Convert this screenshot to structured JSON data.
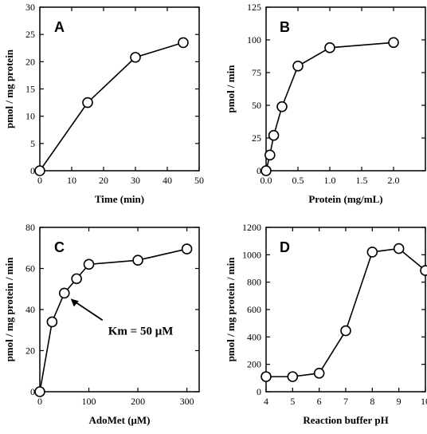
{
  "chart_data": [
    {
      "type": "line",
      "panel_label": "A",
      "xlabel": "Time (min)",
      "ylabel": "pmol / mg protein",
      "xlim": [
        0,
        50
      ],
      "ylim": [
        0,
        30
      ],
      "x_ticks": [
        0,
        10,
        20,
        30,
        40,
        50
      ],
      "y_ticks": [
        0,
        5,
        10,
        15,
        20,
        25,
        30
      ],
      "x_tick_labels": [
        "0",
        "10",
        "20",
        "30",
        "40",
        "50"
      ],
      "y_tick_labels": [
        "0",
        "5",
        "10",
        "15",
        "20",
        "25",
        "30"
      ],
      "grid": false,
      "series": [
        {
          "x": [
            0,
            15,
            30,
            45
          ],
          "y": [
            0,
            12.5,
            20.8,
            23.5
          ]
        }
      ]
    },
    {
      "type": "line",
      "panel_label": "B",
      "xlabel": "Protein (mg/mL)",
      "ylabel": "pmol / min",
      "xlim": [
        0,
        2.5
      ],
      "ylim": [
        0,
        125
      ],
      "x_ticks": [
        0,
        0.5,
        1.0,
        1.5,
        2.0
      ],
      "y_ticks": [
        0,
        25,
        50,
        75,
        100,
        125
      ],
      "x_tick_labels": [
        "0.0",
        "0.5",
        "1.0",
        "1.5",
        "2.0"
      ],
      "y_tick_labels": [
        "0",
        "25",
        "50",
        "75",
        "100",
        "125"
      ],
      "grid": false,
      "series": [
        {
          "x": [
            0,
            0.06,
            0.12,
            0.25,
            0.5,
            1.0,
            2.0
          ],
          "y": [
            0,
            12,
            27,
            49,
            80,
            94,
            98
          ]
        }
      ]
    },
    {
      "type": "line",
      "panel_label": "C",
      "xlabel": "AdoMet (μM)",
      "ylabel": "pmol / mg protein / min",
      "xlim": [
        0,
        325
      ],
      "ylim": [
        0,
        80
      ],
      "x_ticks": [
        0,
        100,
        200,
        300
      ],
      "y_ticks": [
        0,
        20,
        40,
        60,
        80
      ],
      "x_tick_labels": [
        "0",
        "100",
        "200",
        "300"
      ],
      "y_tick_labels": [
        "0",
        "20",
        "40",
        "60",
        "80"
      ],
      "grid": false,
      "annotation": {
        "text": "Km = 50 μM",
        "x": 50,
        "y": 48
      },
      "series": [
        {
          "x": [
            0,
            25,
            50,
            75,
            100,
            200,
            300
          ],
          "y": [
            0,
            34,
            48,
            55,
            62,
            64,
            69.5
          ]
        }
      ]
    },
    {
      "type": "line",
      "panel_label": "D",
      "xlabel": "Reaction buffer pH",
      "ylabel": "pmol / mg protein / min",
      "xlim": [
        4,
        10
      ],
      "ylim": [
        0,
        1200
      ],
      "x_ticks": [
        4,
        5,
        6,
        7,
        8,
        9,
        10
      ],
      "y_ticks": [
        0,
        200,
        400,
        600,
        800,
        1000,
        1200
      ],
      "x_tick_labels": [
        "4",
        "5",
        "6",
        "7",
        "8",
        "9",
        "10"
      ],
      "y_tick_labels": [
        "0",
        "200",
        "400",
        "600",
        "800",
        "1000",
        "1200"
      ],
      "grid": false,
      "series": [
        {
          "x": [
            4,
            5,
            6,
            7,
            8,
            9,
            10
          ],
          "y": [
            110,
            110,
            135,
            445,
            1020,
            1045,
            885
          ]
        }
      ]
    }
  ]
}
